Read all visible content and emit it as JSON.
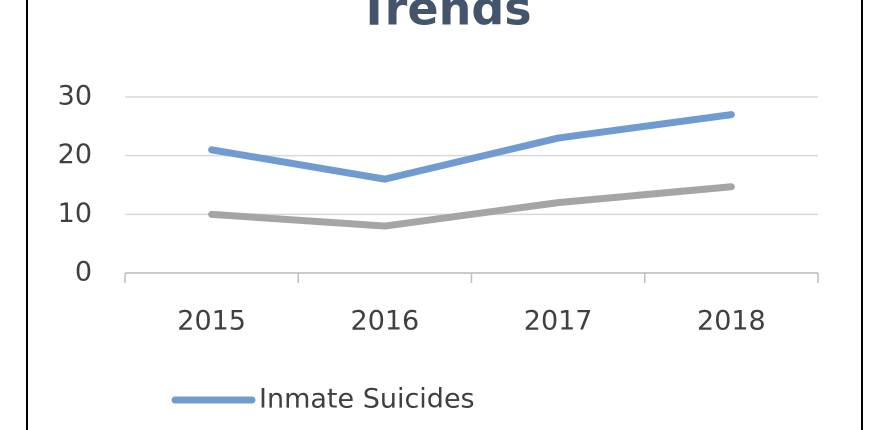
{
  "chart_data": {
    "type": "line",
    "title": "Trends",
    "categories": [
      "2015",
      "2016",
      "2017",
      "2018"
    ],
    "series": [
      {
        "name": "Inmate Suicides",
        "color": "#6f9bd1",
        "values": [
          21,
          16,
          23,
          27
        ]
      },
      {
        "color": "#a5a5a5",
        "values": [
          10,
          8,
          12,
          14.7
        ]
      }
    ],
    "ylim": [
      0,
      30
    ],
    "yticks": [
      0,
      10,
      20,
      30
    ],
    "grid": true
  }
}
